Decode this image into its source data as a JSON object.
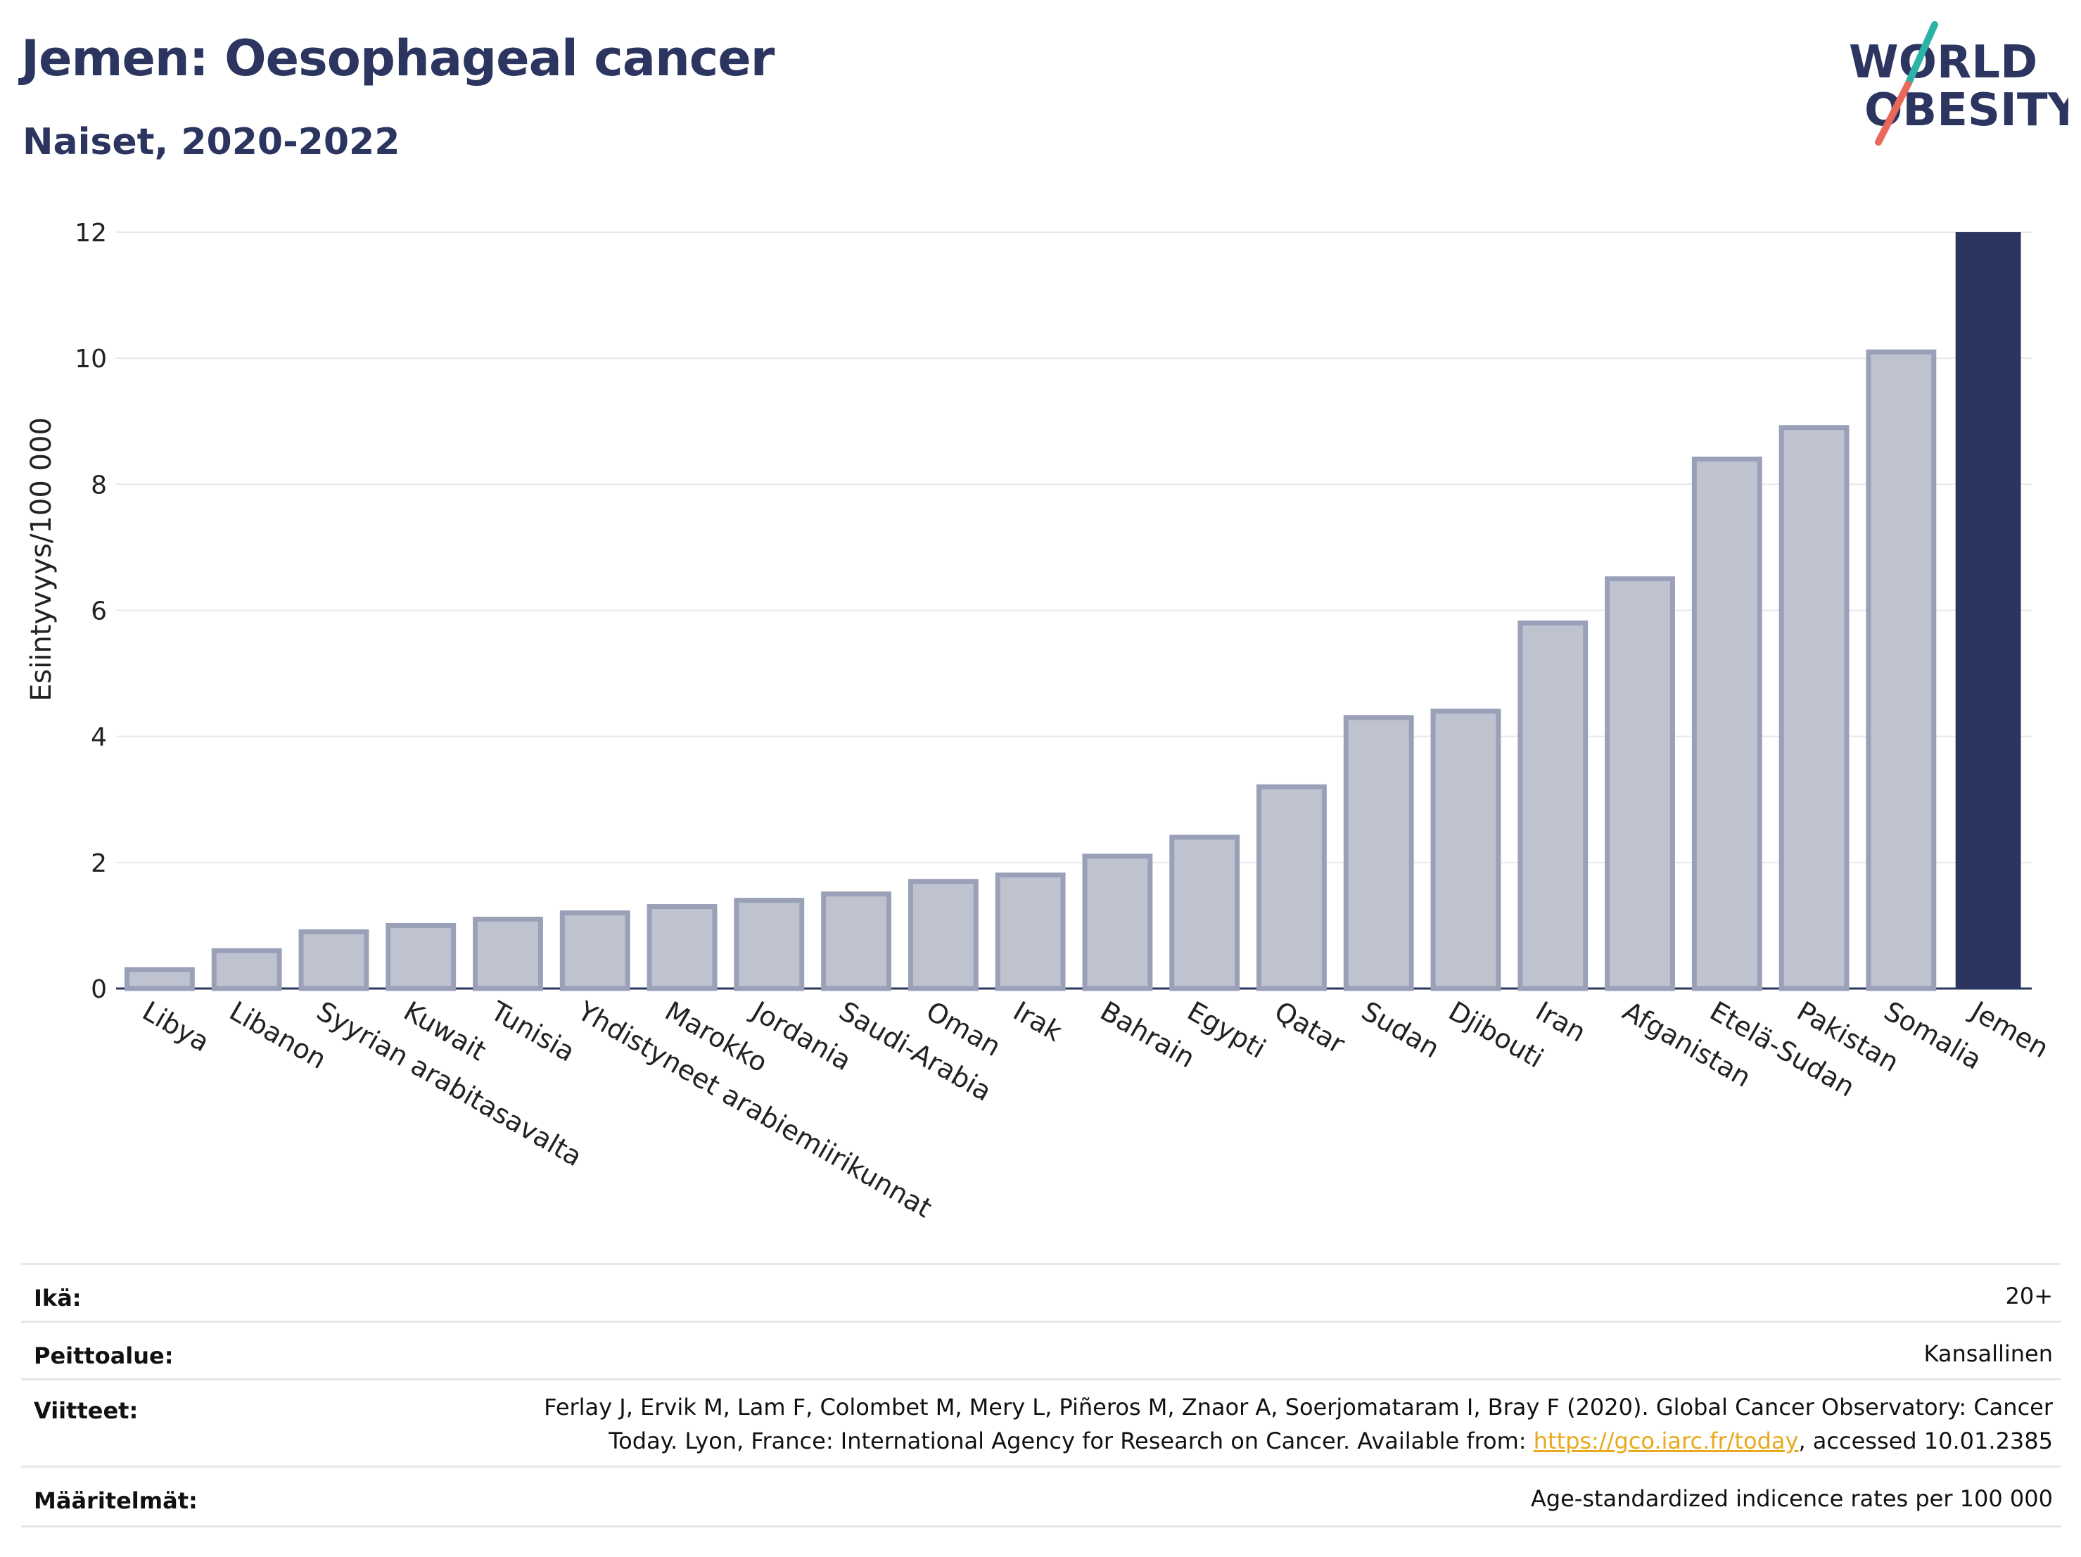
{
  "header": {
    "title": "Jemen: Oesophageal cancer",
    "subtitle": "Naiset, 2020-2022"
  },
  "logo": {
    "line1": "WORLD",
    "line2": "OBESITY",
    "accent_teal": "#2bb3a6",
    "accent_coral": "#e8685a"
  },
  "chart_data": {
    "type": "bar",
    "ylabel": "Esiintyvyys/100 000",
    "ylim": [
      0,
      12
    ],
    "yticks": [
      0,
      2,
      4,
      6,
      8,
      10,
      12
    ],
    "categories": [
      "Libya",
      "Libanon",
      "Syyrian arabitasavalta",
      "Kuwait",
      "Tunisia",
      "Yhdistyneet arabiemiirikunnat",
      "Marokko",
      "Jordania",
      "Saudi-Arabia",
      "Oman",
      "Irak",
      "Bahrain",
      "Egypti",
      "Qatar",
      "Sudan",
      "Djibouti",
      "Iran",
      "Afganistan",
      "Etelä-Sudan",
      "Pakistan",
      "Somalia",
      "Jemen"
    ],
    "values": [
      0.3,
      0.6,
      0.9,
      1.0,
      1.1,
      1.2,
      1.3,
      1.4,
      1.5,
      1.7,
      1.8,
      2.1,
      2.4,
      3.2,
      4.3,
      4.4,
      5.8,
      6.5,
      8.4,
      8.9,
      10.1,
      12.0
    ],
    "highlight": "Jemen",
    "bar_color": "#bfc3cf",
    "bar_border": "#9aa0b8",
    "highlight_color": "#2b3560",
    "grid": true
  },
  "footer": {
    "rows": [
      {
        "label": "Ikä:",
        "value": "20+"
      },
      {
        "label": "Peittoalue:",
        "value": "Kansallinen"
      },
      {
        "label": "Viitteet:",
        "value_line1": "Ferlay J, Ervik M, Lam F, Colombet M, Mery L, Piñeros M, Znaor A, Soerjomataram I, Bray F (2020). Global Cancer Observatory: Cancer",
        "value_line2_pre": "Today. Lyon, France: International Agency for Research on Cancer. Available from: ",
        "link": "https://gco.iarc.fr/today",
        "value_line2_post": ", accessed 10.01.2385"
      },
      {
        "label": "Määritelmät:",
        "value": "Age-standardized indicence rates per 100 000"
      }
    ]
  }
}
